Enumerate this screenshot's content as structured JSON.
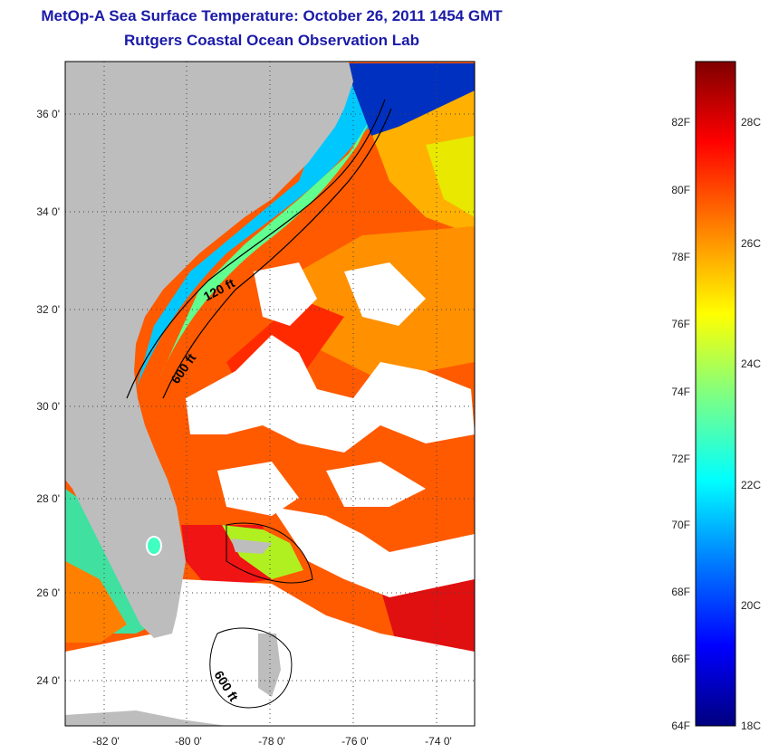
{
  "header": {
    "title": "MetOp-A Sea Surface Temperature:  October 26, 2011 1454 GMT",
    "subtitle": "Rutgers Coastal Ocean Observation Lab"
  },
  "map": {
    "lat_labels": [
      "36 0'",
      "34 0'",
      "32 0'",
      "30 0'",
      "28 0'",
      "26 0'",
      "24 0'"
    ],
    "lon_labels": [
      "-82 0'",
      "-80 0'",
      "-78 0'",
      "-76 0'",
      "-74 0'"
    ],
    "contour_labels": [
      "120 ft",
      "600 ft",
      "600 ft"
    ],
    "colors": {
      "land": "#bdbdbd",
      "cloud": "#ffffff"
    }
  },
  "colorbar": {
    "fahrenheit_labels": [
      "82F",
      "80F",
      "78F",
      "76F",
      "74F",
      "72F",
      "70F",
      "68F",
      "66F",
      "64F"
    ],
    "celsius_labels": [
      "28C",
      "26C",
      "24C",
      "22C",
      "20C",
      "18C"
    ],
    "stops": [
      "#00007f",
      "#0000ff",
      "#0080ff",
      "#00ffff",
      "#80ff80",
      "#ffff00",
      "#ff8000",
      "#ff0000",
      "#7f0000"
    ]
  }
}
